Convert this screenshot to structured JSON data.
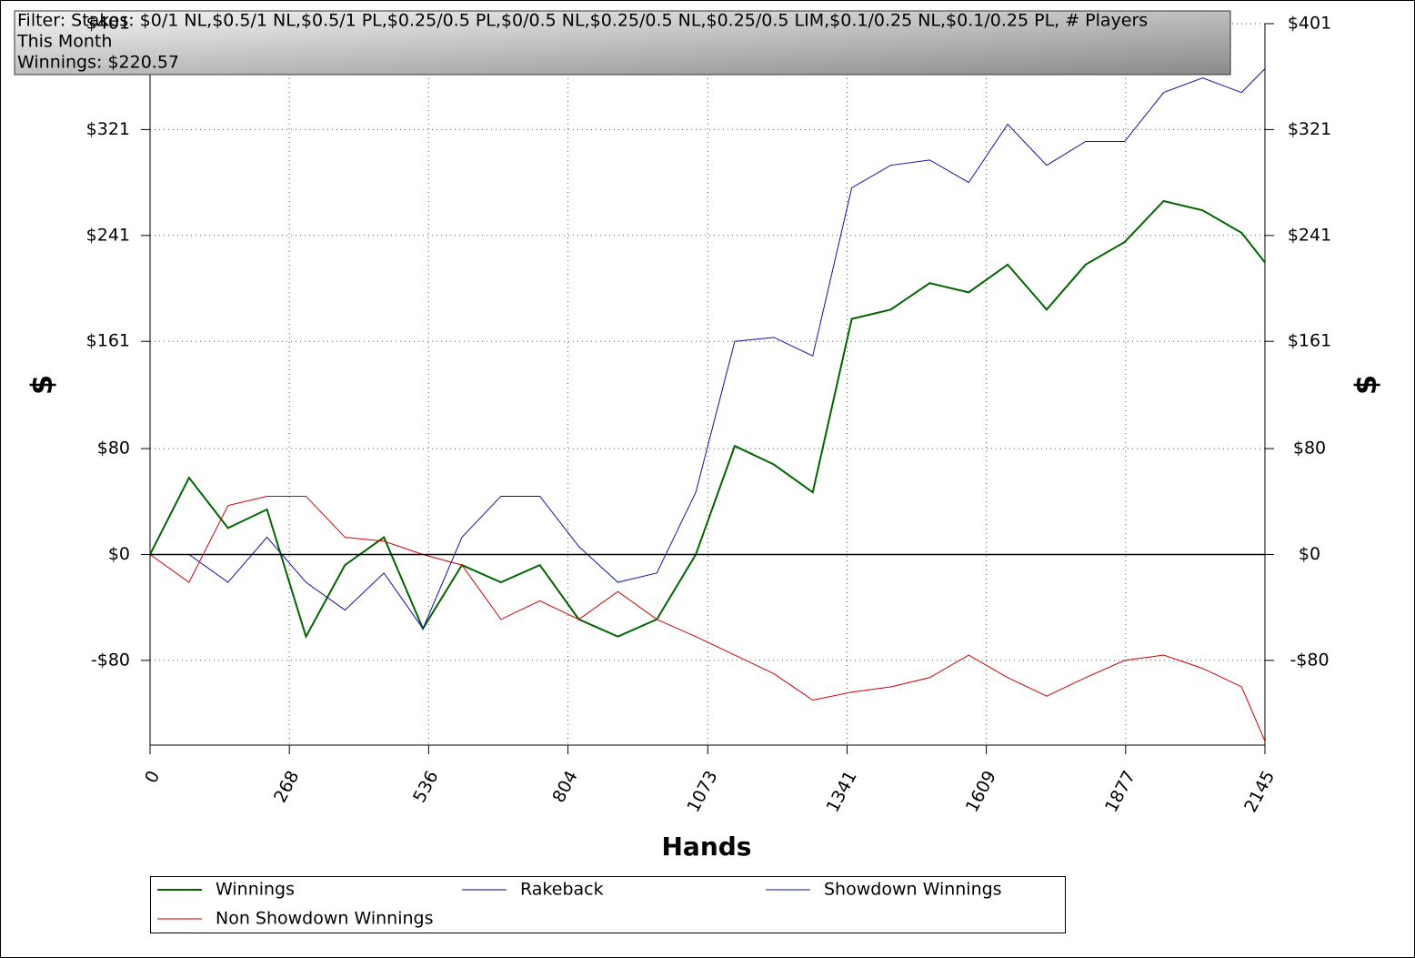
{
  "chart_data": {
    "type": "line",
    "title": "Filter: Stakes: $0/1 NL,$0.5/1 NL,$0.5/1 PL,$0.25/0.5 PL,$0/0.5 NL,$0.25/0.5 NL,$0.25/0.5 LIM,$0.1/0.25 NL,$0.1/0.25 PL, # Players",
    "subtitle": "This Month",
    "annotation": "Winnings: $220.57",
    "xlabel": "Hands",
    "ylabel": "$",
    "y2label": "$",
    "xlim": [
      0,
      2145
    ],
    "xticks": [
      0,
      268,
      536,
      804,
      1073,
      1341,
      1609,
      1877,
      2145
    ],
    "ylim": [
      -144,
      401
    ],
    "yticks": [
      {
        "value": -80,
        "label": "-$80"
      },
      {
        "value": 0,
        "label": "$0"
      },
      {
        "value": 80,
        "label": "$80"
      },
      {
        "value": 161,
        "label": "$161"
      },
      {
        "value": 241,
        "label": "$241"
      },
      {
        "value": 321,
        "label": "$321"
      },
      {
        "value": 401,
        "label": "$401"
      }
    ],
    "y2lim": [
      -144,
      401
    ],
    "y2ticks": [
      {
        "value": -80,
        "label": "-$80"
      },
      {
        "value": 0,
        "label": "$0"
      },
      {
        "value": 80,
        "label": "$80"
      },
      {
        "value": 161,
        "label": "$161"
      },
      {
        "value": 241,
        "label": "$241"
      },
      {
        "value": 321,
        "label": "$321"
      },
      {
        "value": 401,
        "label": "$401"
      }
    ],
    "grid": true,
    "x": [
      0,
      75,
      150,
      225,
      300,
      375,
      450,
      525,
      600,
      675,
      750,
      825,
      900,
      975,
      1050,
      1125,
      1200,
      1275,
      1350,
      1425,
      1500,
      1575,
      1650,
      1725,
      1800,
      1875,
      1950,
      2025,
      2100,
      2145
    ],
    "series": [
      {
        "name": "Winnings",
        "color": "#006400",
        "values": [
          0,
          58,
          20,
          34,
          -62,
          -8,
          13,
          -56,
          -8,
          -21,
          -8,
          -49,
          -62,
          -49,
          0,
          82,
          68,
          47,
          178,
          185,
          205,
          198,
          219,
          185,
          219,
          236,
          267,
          260,
          243,
          220.57
        ]
      },
      {
        "name": "Rakeback",
        "color": "#00008b",
        "values": [
          0,
          0,
          0,
          0,
          0,
          0,
          0,
          0,
          0,
          0,
          0,
          0,
          0,
          0,
          0,
          0,
          0,
          0,
          0,
          0,
          0,
          0,
          0,
          0,
          0,
          0,
          0,
          0,
          0,
          0
        ]
      },
      {
        "name": "Showdown Winnings",
        "color": "#1010a0",
        "values": [
          0,
          0,
          -21,
          13,
          -21,
          -42,
          -14,
          -56,
          13,
          44,
          44,
          6,
          -21,
          -14,
          47,
          161,
          164,
          150,
          277,
          294,
          298,
          281,
          325,
          294,
          312,
          312,
          349,
          360,
          349,
          367
        ]
      },
      {
        "name": "Non Showdown Winnings",
        "color": "#cc0000",
        "values": [
          0,
          -21,
          37,
          44,
          44,
          13,
          10,
          0,
          -8,
          -49,
          -35,
          -49,
          -28,
          -49,
          -62,
          -76,
          -90,
          -110,
          -104,
          -100,
          -93,
          -76,
          -93,
          -107,
          -93,
          -80,
          -76,
          -86,
          -100,
          -141
        ]
      }
    ]
  }
}
